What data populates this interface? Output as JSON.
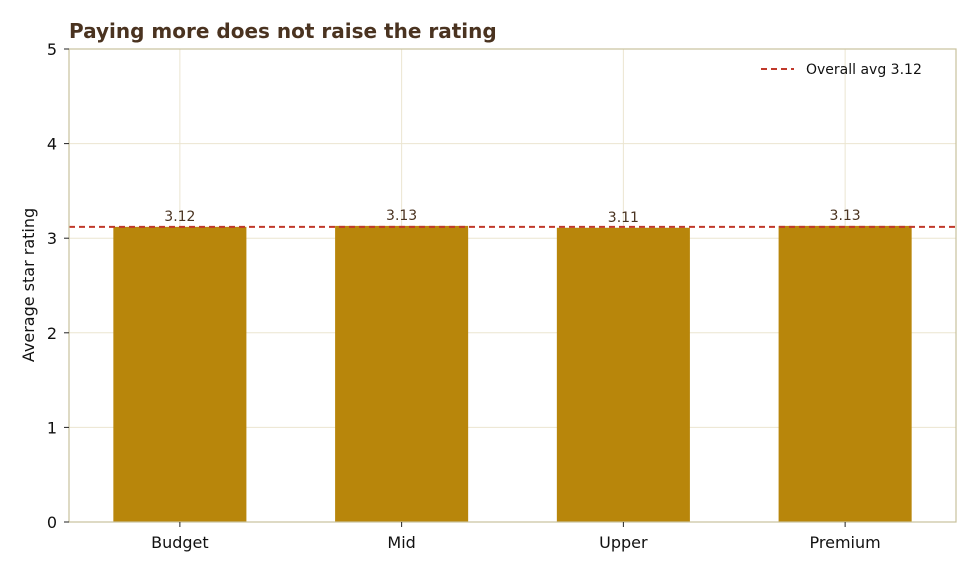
{
  "chart_data": {
    "type": "bar",
    "title": "Paying more does not raise the rating",
    "xlabel": "",
    "ylabel": "Average star rating",
    "categories": [
      "Budget",
      "Mid",
      "Upper",
      "Premium"
    ],
    "values": [
      3.12,
      3.13,
      3.11,
      3.13
    ],
    "value_labels": [
      "3.12",
      "3.13",
      "3.11",
      "3.13"
    ],
    "ylim": [
      0,
      5
    ],
    "yticks": [
      0,
      1,
      2,
      3,
      4,
      5
    ],
    "grid": true,
    "reference_line": {
      "value": 3.12,
      "label": "Overall avg 3.12",
      "style": "dashed"
    },
    "legend": {
      "placement": "top-right"
    },
    "colors": {
      "bar": "#b8860b",
      "reference_line": "#c0392b",
      "grid": "#ebe5d0",
      "axes_frame": "#c9c19c",
      "title": "#4a3320",
      "data_label": "#4a3320"
    }
  }
}
